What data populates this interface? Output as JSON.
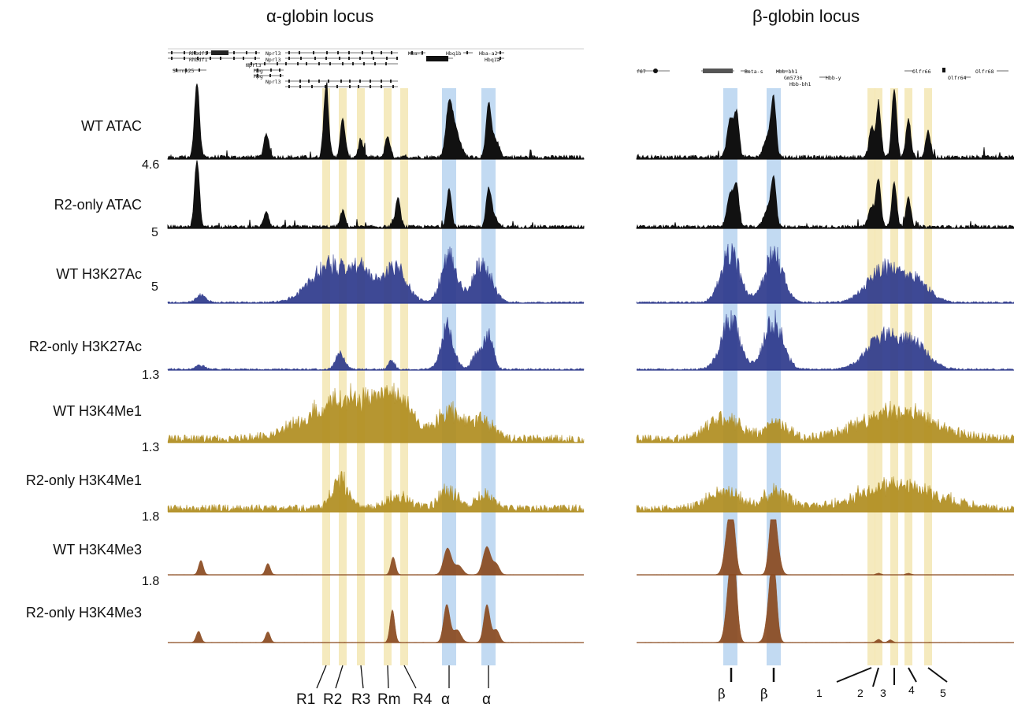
{
  "loci": [
    {
      "id": "alpha",
      "title": "α-globin locus",
      "highlights_yellow": [
        "R1",
        "R2",
        "R3",
        "Rm",
        "R4"
      ],
      "highlights_blue": [
        "α",
        "α"
      ],
      "bottom_labels": [
        "R1",
        "R2",
        "R3",
        "Rm",
        "R4",
        "α",
        "α"
      ],
      "genes": [
        "Rhbdf1",
        "Rhbdf1",
        "Snrnp25",
        "Mpg",
        "Mpg",
        "Nprl3",
        "Nprl3",
        "Nprl3",
        "Nprl3",
        "Hba-x",
        "Hbq1b",
        "Hba-a2",
        "Hbq1a"
      ]
    },
    {
      "id": "beta",
      "title": "β-globin locus",
      "highlights_yellow": [
        "1",
        "2",
        "3",
        "4",
        "5"
      ],
      "highlights_blue": [
        "β",
        "β"
      ],
      "bottom_labels": [
        "β",
        "β",
        "1",
        "2",
        "3",
        "4",
        "5"
      ],
      "genes": [
        "f67",
        "Beta-s",
        "Hbb-bh1",
        "Gm5736",
        "Hbb-y",
        "Hbb-bh1",
        "Olfr66",
        "Olfr64",
        "Olfr68"
      ]
    }
  ],
  "tracks": [
    {
      "label": "WT ATAC",
      "scale": "4.6",
      "color": "#111111",
      "type": "ATAC"
    },
    {
      "label": "R2-only ATAC",
      "scale": "5",
      "color": "#111111",
      "type": "ATAC"
    },
    {
      "label": "WT H3K27Ac",
      "scale": "5",
      "color": "#2e3a8c",
      "type": "K27"
    },
    {
      "label": "R2-only H3K27Ac",
      "scale": "1.3",
      "color": "#2e3a8c",
      "type": "K27"
    },
    {
      "label": "WT H3K4Me1",
      "scale": "1.3",
      "color": "#b08d1f",
      "type": "K4me1"
    },
    {
      "label": "R2-only H3K4Me1",
      "scale": "1.8",
      "color": "#b08d1f",
      "type": "K4me1"
    },
    {
      "label": "WT H3K4Me3",
      "scale": "1.8",
      "color": "#8a4a1f",
      "type": "K4me3"
    },
    {
      "label": "R2-only H3K4Me3",
      "scale": "",
      "color": "#8a4a1f",
      "type": "K4me3"
    }
  ],
  "colors": {
    "yellow_highlight": "#f3e6b3",
    "blue_highlight": "#b7d3f0"
  }
}
